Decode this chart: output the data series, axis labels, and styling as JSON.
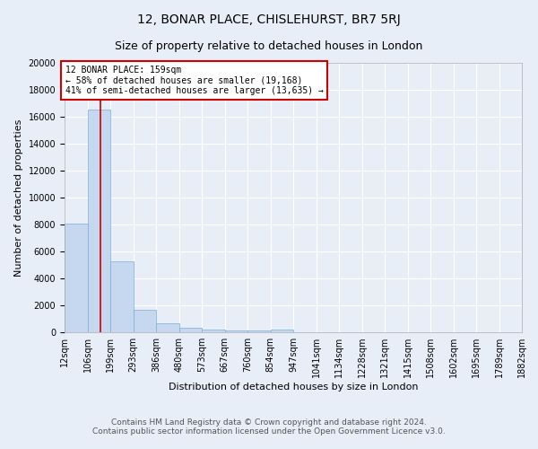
{
  "title": "12, BONAR PLACE, CHISLEHURST, BR7 5RJ",
  "subtitle": "Size of property relative to detached houses in London",
  "xlabel": "Distribution of detached houses by size in London",
  "ylabel": "Number of detached properties",
  "bar_values": [
    8100,
    16500,
    5300,
    1700,
    700,
    350,
    200,
    150,
    150,
    200,
    0,
    0,
    0,
    0,
    0,
    0,
    0,
    0,
    0,
    0
  ],
  "bin_edges": [
    12,
    106,
    199,
    293,
    386,
    480,
    573,
    667,
    760,
    854,
    947,
    1041,
    1134,
    1228,
    1321,
    1415,
    1508,
    1602,
    1695,
    1789,
    1882
  ],
  "tick_labels": [
    "12sqm",
    "106sqm",
    "199sqm",
    "293sqm",
    "386sqm",
    "480sqm",
    "573sqm",
    "667sqm",
    "760sqm",
    "854sqm",
    "947sqm",
    "1041sqm",
    "1134sqm",
    "1228sqm",
    "1321sqm",
    "1415sqm",
    "1508sqm",
    "1602sqm",
    "1695sqm",
    "1789sqm",
    "1882sqm"
  ],
  "bar_color": "#c5d8f0",
  "bar_edgecolor": "#7bafd4",
  "property_size": 159,
  "vline_color": "#cc0000",
  "annotation_title": "12 BONAR PLACE: 159sqm",
  "annotation_line1": "← 58% of detached houses are smaller (19,168)",
  "annotation_line2": "41% of semi-detached houses are larger (13,635) →",
  "annotation_box_color": "#cc0000",
  "ylim": [
    0,
    20000
  ],
  "yticks": [
    0,
    2000,
    4000,
    6000,
    8000,
    10000,
    12000,
    14000,
    16000,
    18000,
    20000
  ],
  "footer_line1": "Contains HM Land Registry data © Crown copyright and database right 2024.",
  "footer_line2": "Contains public sector information licensed under the Open Government Licence v3.0.",
  "background_color": "#e8eef8",
  "grid_color": "#ffffff",
  "title_fontsize": 10,
  "subtitle_fontsize": 9,
  "axis_fontsize": 8,
  "tick_fontsize": 7,
  "footer_fontsize": 6.5
}
